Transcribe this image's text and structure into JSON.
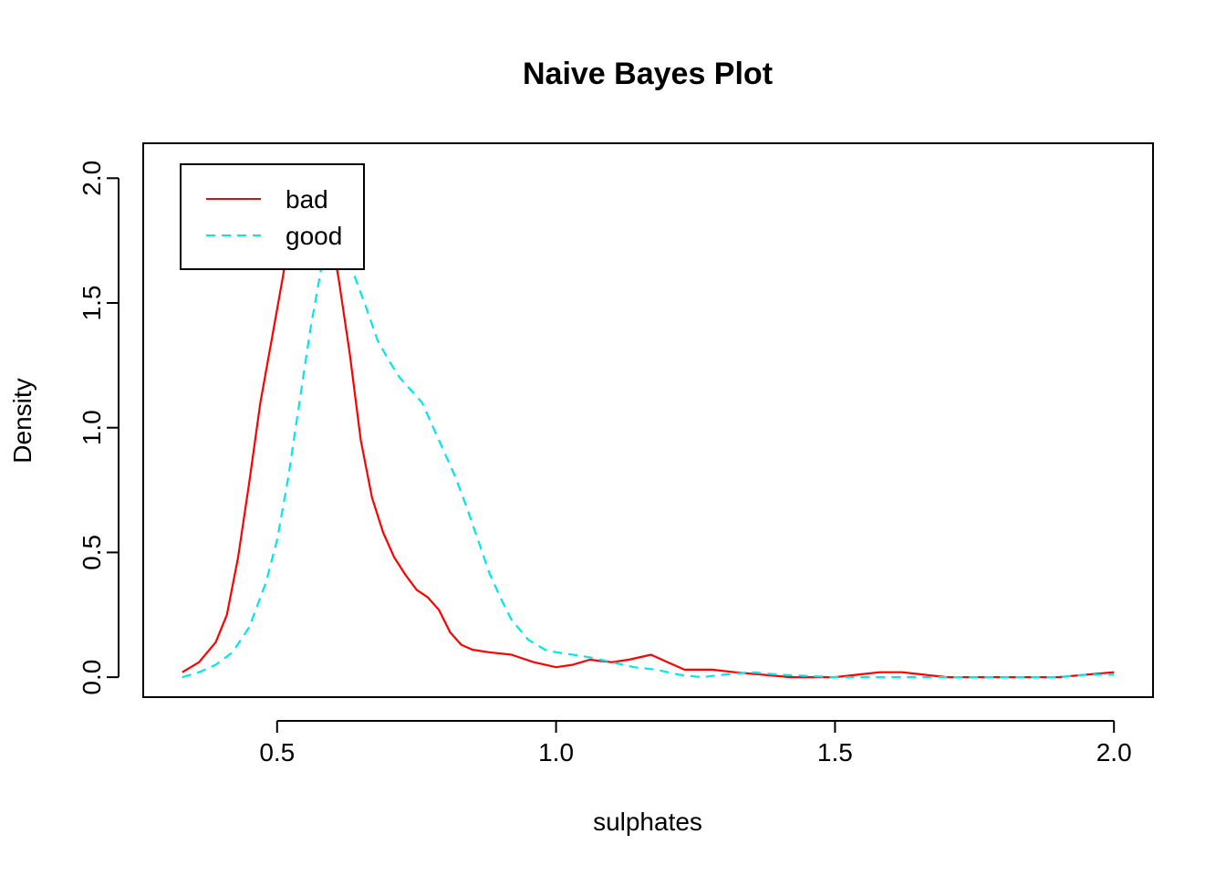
{
  "chart_data": {
    "type": "line",
    "title": "Naive Bayes Plot",
    "xlabel": "sulphates",
    "ylabel": "Density",
    "xlim": [
      0.26,
      2.07
    ],
    "ylim": [
      -0.08,
      2.14
    ],
    "xticks": [
      "0.5",
      "1.0",
      "1.5",
      "2.0"
    ],
    "xtick_values": [
      0.5,
      1.0,
      1.5,
      2.0
    ],
    "yticks": [
      "0.0",
      "0.5",
      "1.0",
      "1.5",
      "2.0"
    ],
    "ytick_values": [
      0.0,
      0.5,
      1.0,
      1.5,
      2.0
    ],
    "grid": false,
    "legend_position": "top-left",
    "series": [
      {
        "name": "bad",
        "color": "#ff0000",
        "dash": "solid",
        "x": [
          0.33,
          0.36,
          0.39,
          0.41,
          0.43,
          0.45,
          0.47,
          0.49,
          0.51,
          0.53,
          0.55,
          0.57,
          0.59,
          0.61,
          0.63,
          0.65,
          0.67,
          0.69,
          0.71,
          0.73,
          0.75,
          0.77,
          0.79,
          0.81,
          0.83,
          0.85,
          0.88,
          0.92,
          0.96,
          1.0,
          1.03,
          1.06,
          1.1,
          1.13,
          1.17,
          1.2,
          1.23,
          1.28,
          1.32,
          1.37,
          1.42,
          1.5,
          1.54,
          1.58,
          1.62,
          1.66,
          1.7,
          1.8,
          1.9,
          1.95,
          2.0
        ],
        "values": [
          0.02,
          0.06,
          0.14,
          0.25,
          0.48,
          0.78,
          1.1,
          1.35,
          1.6,
          1.88,
          2.0,
          1.98,
          1.85,
          1.6,
          1.3,
          0.95,
          0.72,
          0.58,
          0.48,
          0.41,
          0.35,
          0.32,
          0.27,
          0.18,
          0.13,
          0.11,
          0.1,
          0.09,
          0.06,
          0.04,
          0.05,
          0.07,
          0.06,
          0.07,
          0.09,
          0.06,
          0.03,
          0.03,
          0.02,
          0.01,
          0.0,
          0.0,
          0.01,
          0.02,
          0.02,
          0.01,
          0.0,
          0.0,
          0.0,
          0.01,
          0.02
        ]
      },
      {
        "name": "good",
        "color": "#00e5ee",
        "dash": "dashed",
        "x": [
          0.33,
          0.36,
          0.39,
          0.42,
          0.45,
          0.48,
          0.5,
          0.52,
          0.54,
          0.56,
          0.58,
          0.6,
          0.62,
          0.64,
          0.66,
          0.68,
          0.7,
          0.72,
          0.74,
          0.76,
          0.78,
          0.8,
          0.82,
          0.84,
          0.86,
          0.88,
          0.9,
          0.92,
          0.95,
          0.98,
          1.0,
          1.03,
          1.06,
          1.1,
          1.14,
          1.18,
          1.22,
          1.26,
          1.3,
          1.35,
          1.4,
          1.5,
          1.6,
          1.7,
          1.8,
          1.9,
          1.95,
          2.0
        ],
        "values": [
          0.0,
          0.02,
          0.05,
          0.1,
          0.2,
          0.38,
          0.55,
          0.8,
          1.1,
          1.4,
          1.65,
          1.82,
          1.76,
          1.6,
          1.48,
          1.35,
          1.27,
          1.2,
          1.15,
          1.1,
          1.0,
          0.9,
          0.8,
          0.68,
          0.55,
          0.42,
          0.32,
          0.23,
          0.15,
          0.11,
          0.1,
          0.09,
          0.08,
          0.06,
          0.04,
          0.03,
          0.01,
          0.0,
          0.01,
          0.02,
          0.01,
          0.0,
          0.0,
          0.0,
          0.0,
          0.0,
          0.01,
          0.01
        ]
      }
    ]
  }
}
